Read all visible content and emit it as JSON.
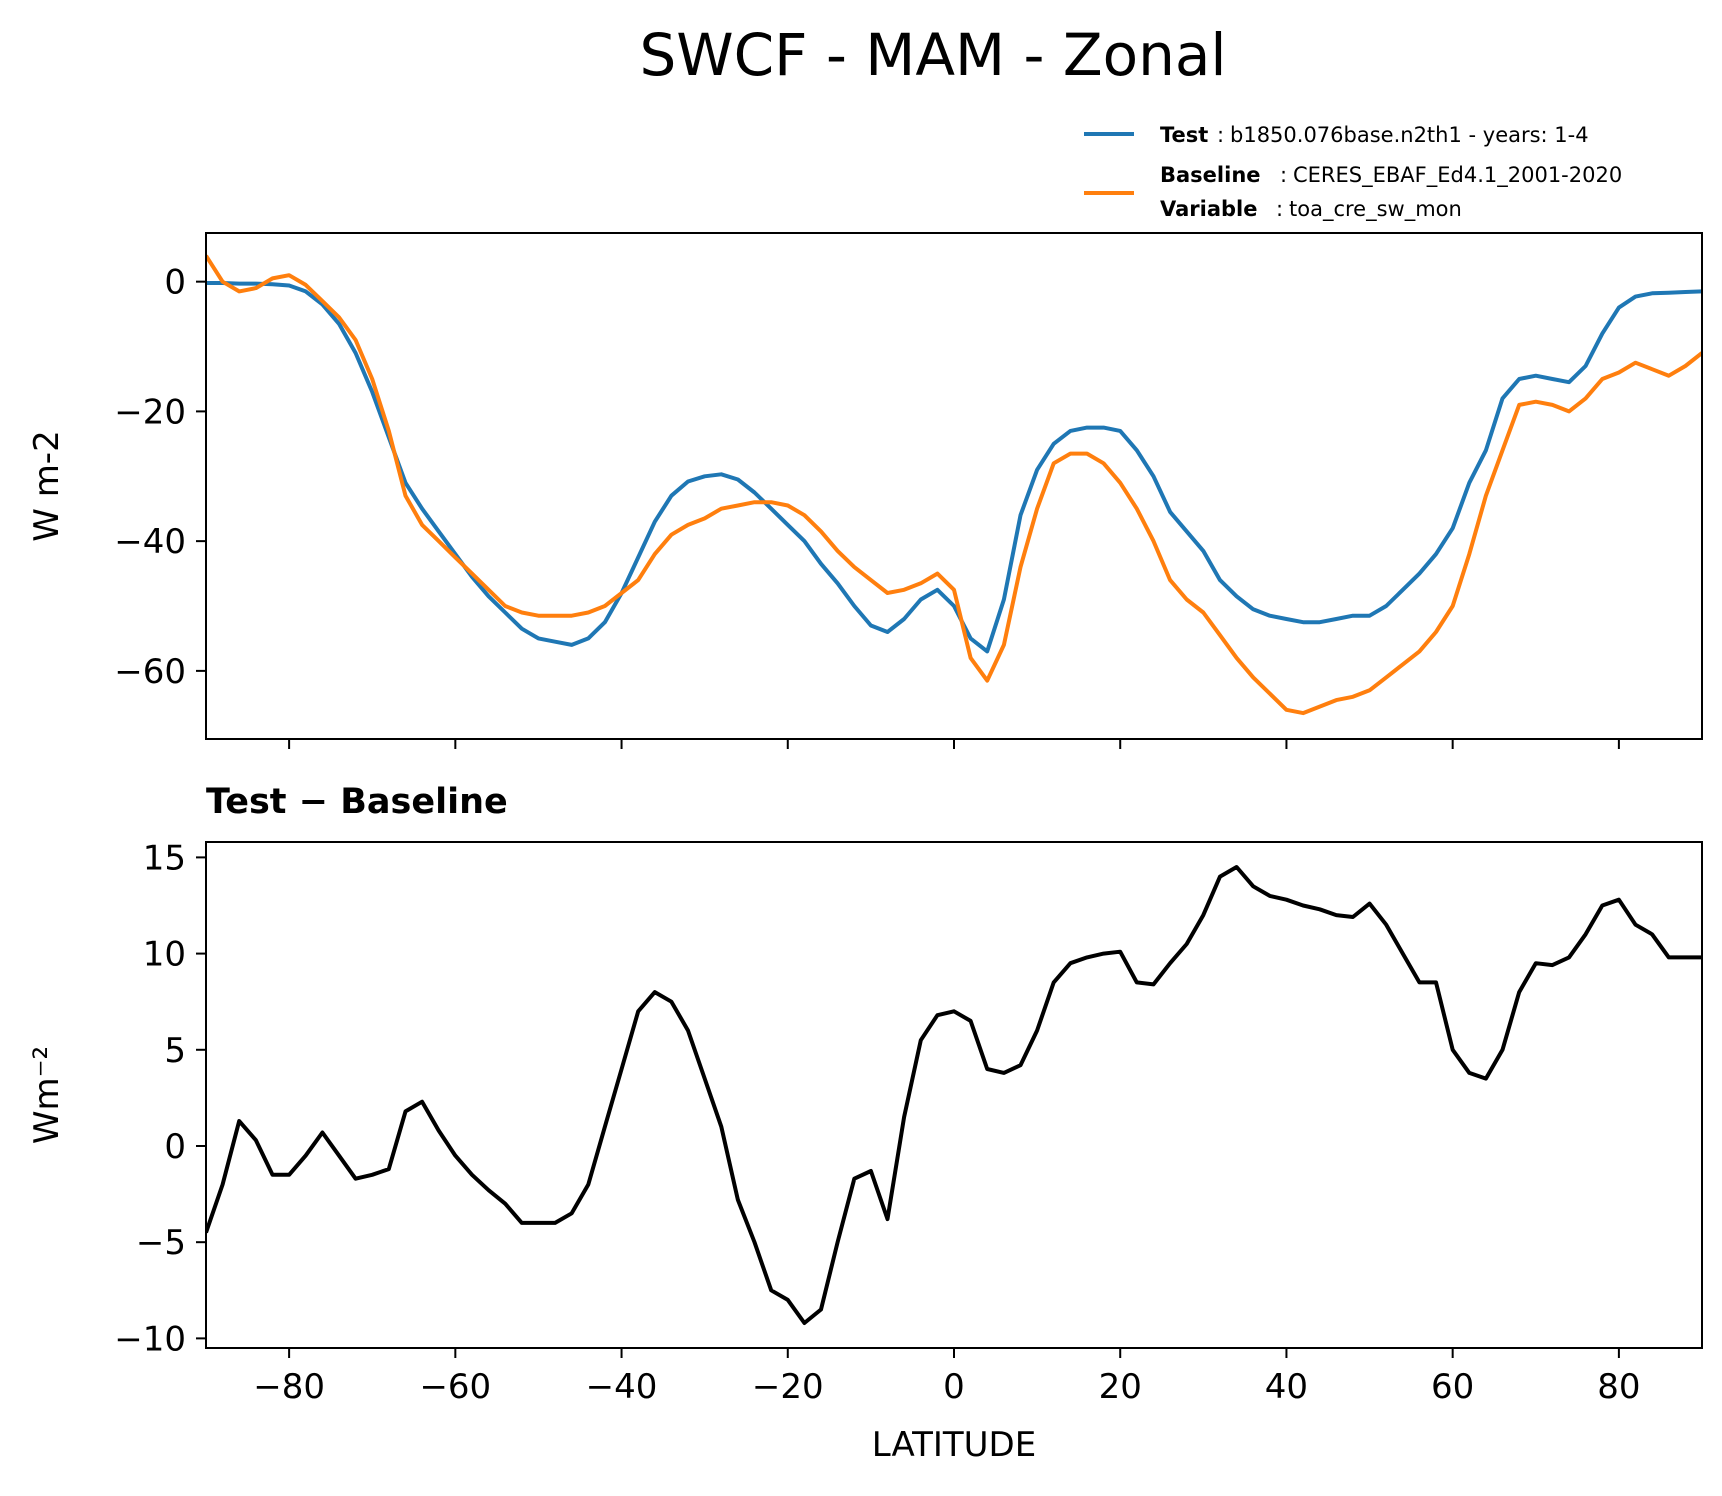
{
  "title": "SWCF - MAM - Zonal",
  "legend": {
    "test": {
      "key": "Test",
      "sep": ":",
      "value": "b1850.076base.n2th1 - years: 1-4",
      "color": "#1f77b4"
    },
    "baseline": {
      "key": "Baseline",
      "sep": ":",
      "value": "CERES_EBAF_Ed4.1_2001-2020",
      "color": "#ff7f0e"
    },
    "variable": {
      "key": "Variable",
      "sep": ":",
      "value": "toa_cre_sw_mon"
    }
  },
  "chart_data": [
    {
      "type": "line",
      "ylabel": "W m-2",
      "xlim": [
        -90,
        90
      ],
      "ylim": [
        -70.5,
        7.5
      ],
      "yticks": [
        0,
        -20,
        -40,
        -60
      ],
      "ytick_labels": [
        "0",
        "−20",
        "−40",
        "−60"
      ],
      "xticks": [
        -80,
        -60,
        -40,
        -20,
        0,
        20,
        40,
        60,
        80
      ],
      "x": [
        -90,
        -88,
        -86,
        -84,
        -82,
        -80,
        -78,
        -76,
        -74,
        -72,
        -70,
        -68,
        -66,
        -64,
        -62,
        -60,
        -58,
        -56,
        -54,
        -52,
        -50,
        -48,
        -46,
        -44,
        -42,
        -40,
        -38,
        -36,
        -34,
        -32,
        -30,
        -28,
        -26,
        -24,
        -22,
        -20,
        -18,
        -16,
        -14,
        -12,
        -10,
        -8,
        -6,
        -4,
        -2,
        0,
        2,
        4,
        6,
        8,
        10,
        12,
        14,
        16,
        18,
        20,
        22,
        24,
        26,
        28,
        30,
        32,
        34,
        36,
        38,
        40,
        42,
        44,
        46,
        48,
        50,
        52,
        54,
        56,
        58,
        60,
        62,
        64,
        66,
        68,
        70,
        72,
        74,
        76,
        78,
        80,
        82,
        84,
        86,
        88,
        90
      ],
      "series": [
        {
          "name": "Test",
          "color": "#1f77b4",
          "values": [
            -0.2,
            -0.2,
            -0.3,
            -0.3,
            -0.4,
            -0.6,
            -1.5,
            -3.5,
            -6.5,
            -11,
            -17,
            -24,
            -31,
            -35,
            -38.5,
            -42,
            -45.5,
            -48.5,
            -51,
            -53.5,
            -55,
            -55.5,
            -56,
            -55,
            -52.5,
            -48,
            -42.5,
            -37,
            -33,
            -30.8,
            -30,
            -29.7,
            -30.5,
            -32.5,
            -35,
            -37.5,
            -40,
            -43.5,
            -46.5,
            -50,
            -53,
            -54,
            -52,
            -49,
            -47.5,
            -50,
            -55,
            -57,
            -49,
            -36,
            -29,
            -25,
            -23,
            -22.5,
            -22.5,
            -23,
            -26,
            -30,
            -35.5,
            -38.5,
            -41.5,
            -46,
            -48.5,
            -50.5,
            -51.5,
            -52,
            -52.5,
            -52.5,
            -52,
            -51.5,
            -51.5,
            -50,
            -47.5,
            -45,
            -42,
            -38,
            -31,
            -26,
            -18,
            -15,
            -14.5,
            -15,
            -15.5,
            -13,
            -8,
            -4,
            -2.3,
            -1.8,
            -1.7,
            -1.6,
            -1.5
          ]
        },
        {
          "name": "Baseline",
          "color": "#ff7f0e",
          "values": [
            4,
            0,
            -1.5,
            -1,
            0.5,
            1,
            -0.5,
            -3,
            -5.5,
            -9,
            -15,
            -23,
            -33,
            -37.5,
            -40,
            -42.5,
            -45,
            -47.5,
            -50,
            -51,
            -51.5,
            -51.5,
            -51.5,
            -51,
            -50,
            -48,
            -46,
            -42,
            -39,
            -37.5,
            -36.5,
            -35,
            -34.5,
            -34,
            -34,
            -34.5,
            -36,
            -38.5,
            -41.5,
            -44,
            -46,
            -48,
            -47.5,
            -46.5,
            -45,
            -47.5,
            -58,
            -61.5,
            -56,
            -44,
            -35,
            -28,
            -26.5,
            -26.5,
            -28,
            -31,
            -35,
            -40,
            -46,
            -49,
            -51,
            -54.5,
            -58,
            -61,
            -63.5,
            -66,
            -66.5,
            -65.5,
            -64.5,
            -64,
            -63,
            -61,
            -59,
            -57,
            -54,
            -50,
            -42,
            -33,
            -26,
            -19,
            -18.5,
            -19,
            -20,
            -18,
            -15,
            -14,
            -12.5,
            -13.5,
            -14.5,
            -13,
            -11
          ]
        }
      ]
    },
    {
      "type": "line",
      "title": "Test − Baseline",
      "ylabel": "Wm⁻²",
      "xlabel": "LATITUDE",
      "xlim": [
        -90,
        90
      ],
      "ylim": [
        -10.5,
        15.8
      ],
      "yticks": [
        15,
        10,
        5,
        0,
        -5,
        -10
      ],
      "ytick_labels": [
        "15",
        "10",
        "5",
        "0",
        "−5",
        "−10"
      ],
      "xticks": [
        -80,
        -60,
        -40,
        -20,
        0,
        20,
        40,
        60,
        80
      ],
      "xtick_labels": [
        "−80",
        "−60",
        "−40",
        "−20",
        "0",
        "20",
        "40",
        "60",
        "80"
      ],
      "x": [
        -90,
        -88,
        -86,
        -84,
        -82,
        -80,
        -78,
        -76,
        -74,
        -72,
        -70,
        -68,
        -66,
        -64,
        -62,
        -60,
        -58,
        -56,
        -54,
        -52,
        -50,
        -48,
        -46,
        -44,
        -42,
        -40,
        -38,
        -36,
        -34,
        -32,
        -30,
        -28,
        -26,
        -24,
        -22,
        -20,
        -18,
        -16,
        -14,
        -12,
        -10,
        -8,
        -6,
        -4,
        -2,
        0,
        2,
        4,
        6,
        8,
        10,
        12,
        14,
        16,
        18,
        20,
        22,
        24,
        26,
        28,
        30,
        32,
        34,
        36,
        38,
        40,
        42,
        44,
        46,
        48,
        50,
        52,
        54,
        56,
        58,
        60,
        62,
        64,
        66,
        68,
        70,
        72,
        74,
        76,
        78,
        80,
        82,
        84,
        86,
        88,
        90
      ],
      "series": [
        {
          "name": "Test − Baseline",
          "color": "#000000",
          "values": [
            -4.5,
            -2,
            1.3,
            0.3,
            -1.5,
            -1.5,
            -0.5,
            0.7,
            -0.5,
            -1.7,
            -1.5,
            -1.2,
            1.8,
            2.3,
            0.8,
            -0.5,
            -1.5,
            -2.3,
            -3,
            -4,
            -4,
            -4,
            -3.5,
            -2,
            1,
            4,
            7,
            8,
            7.5,
            6,
            3.5,
            1,
            -2.8,
            -5,
            -7.5,
            -8,
            -9.2,
            -8.5,
            -5,
            -1.7,
            -1.3,
            -3.8,
            1.5,
            5.5,
            6.8,
            7,
            6.5,
            4,
            3.8,
            4.2,
            6,
            8.5,
            9.5,
            9.8,
            10,
            10.1,
            8.5,
            8.4,
            9.5,
            10.5,
            12,
            14,
            14.5,
            13.5,
            13,
            12.8,
            12.5,
            12.3,
            12,
            11.9,
            12.6,
            11.5,
            10,
            8.5,
            8.5,
            5,
            3.8,
            3.5,
            5,
            8,
            9.5,
            9.4,
            9.8,
            11,
            12.5,
            12.8,
            11.5,
            11,
            9.8,
            9.8,
            9.8
          ]
        }
      ]
    }
  ]
}
